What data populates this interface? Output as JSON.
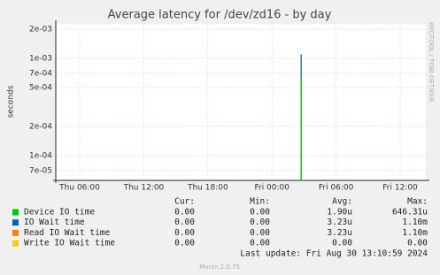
{
  "chart_data": {
    "type": "line",
    "title": "Average latency for /dev/zd16 - by day",
    "y_label": "seconds",
    "log_scale": true,
    "grid": true,
    "xlim": [
      3.76,
      38.4
    ],
    "xticks": [
      {
        "value": 6,
        "label": "Thu 06:00"
      },
      {
        "value": 12,
        "label": "Thu 12:00"
      },
      {
        "value": 18,
        "label": "Thu 18:00"
      },
      {
        "value": 24,
        "label": "Fri 00:00"
      },
      {
        "value": 30,
        "label": "Fri 06:00"
      },
      {
        "value": 36,
        "label": "Fri 12:00"
      }
    ],
    "ylim": [
      5.55e-05,
      0.00227
    ],
    "yticks": [
      {
        "value": 7e-05,
        "label": "7e-05"
      },
      {
        "value": 0.0001,
        "label": "1e-04"
      },
      {
        "value": 0.0002,
        "label": "2e-04"
      },
      {
        "value": 0.0005,
        "label": "5e-04"
      },
      {
        "value": 0.0007,
        "label": "7e-04"
      },
      {
        "value": 0.001,
        "label": "1e-03"
      },
      {
        "value": 0.002,
        "label": "2e-03"
      }
    ],
    "x": [
      26.73
    ],
    "series": [
      {
        "name": "Device IO time",
        "color": "#00cc00",
        "values": [
          0.00064631
        ]
      },
      {
        "name": "IO Wait time",
        "color": "#0066b3",
        "values": [
          0.0011
        ]
      },
      {
        "name": "Read IO Wait time",
        "color": "#ff8000",
        "values": [
          0.0011
        ]
      },
      {
        "name": "Write IO Wait time",
        "color": "#ffcc00",
        "values": [
          null
        ]
      }
    ]
  },
  "legend_table": {
    "headers": [
      "Cur:",
      "Min:",
      "Avg:",
      "Max:"
    ],
    "rows": [
      [
        "0.00",
        "0.00",
        "1.90u",
        "646.31u"
      ],
      [
        "0.00",
        "0.00",
        "3.23u",
        "1.10m"
      ],
      [
        "0.00",
        "0.00",
        "3.23u",
        "1.10m"
      ],
      [
        "0.00",
        "0.00",
        "0.00",
        "0.00"
      ]
    ]
  },
  "footer": {
    "last_update": "Last update:  Fri Aug 30 13:10:59 2024",
    "generator": "Munin 2.0.75",
    "watermark": "RRDTOOL / TOBI OETIKER"
  }
}
